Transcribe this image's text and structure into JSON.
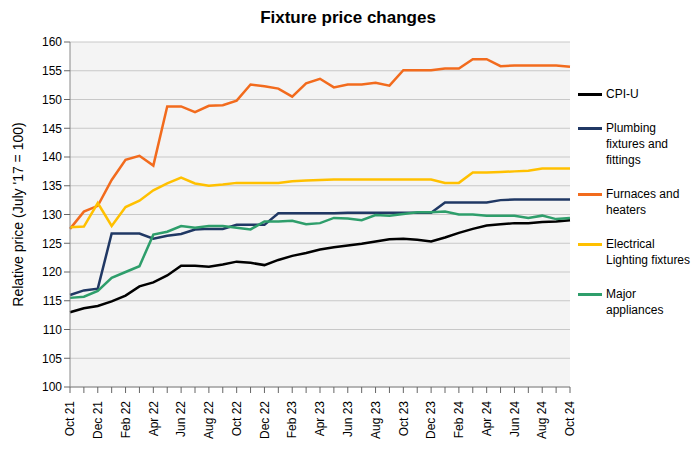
{
  "chart_data": {
    "type": "line",
    "title": "Fixture price changes",
    "y_label": "Relative price (July '17 = 100)",
    "categories": [
      "Oct 21",
      null,
      "Dec 21",
      null,
      "Feb 22",
      null,
      "Apr 22",
      null,
      "Jun 22",
      null,
      "Aug 22",
      null,
      "Oct 22",
      null,
      "Dec 22",
      null,
      "Feb 23",
      null,
      "Apr 23",
      null,
      "Jun 23",
      null,
      "Aug 23",
      null,
      "Oct 23",
      null,
      "Dec 23",
      null,
      "Feb 24",
      null,
      "Apr 24",
      null,
      "Jun 24",
      null,
      "Aug 24",
      null,
      "Oct 24"
    ],
    "series": [
      {
        "name": "CPI-U",
        "color": "#000000",
        "values": [
          113,
          113.7,
          114.1,
          114.9,
          115.9,
          117.5,
          118.2,
          119.4,
          121.1,
          121.1,
          120.9,
          121.3,
          121.8,
          121.6,
          121.2,
          122.1,
          122.8,
          123.3,
          123.9,
          124.3,
          124.6,
          124.9,
          125.3,
          125.7,
          125.8,
          125.6,
          125.3,
          126.0,
          126.8,
          127.5,
          128.1,
          128.3,
          128.5,
          128.5,
          128.7,
          128.8,
          129.0
        ]
      },
      {
        "name": "Plumbing fixtures and fittings",
        "color": "#203864",
        "values": [
          116,
          116.8,
          117.1,
          126.7,
          126.7,
          126.7,
          125.8,
          126.3,
          126.6,
          127.4,
          127.5,
          127.5,
          128.2,
          128.2,
          128.2,
          130.2,
          130.2,
          130.2,
          130.2,
          130.2,
          130.3,
          130.3,
          130.3,
          130.3,
          130.3,
          130.3,
          130.3,
          132.1,
          132.1,
          132.1,
          132.1,
          132.5,
          132.6,
          132.6,
          132.6,
          132.6,
          132.6
        ]
      },
      {
        "name": "Furnaces and heaters",
        "color": "#f26b1d",
        "values": [
          127.5,
          130.5,
          131.5,
          136,
          139.5,
          140.2,
          138.5,
          148.8,
          148.8,
          147.8,
          148.9,
          149,
          149.8,
          152.6,
          152.3,
          151.9,
          150.5,
          152.8,
          153.6,
          152.1,
          152.6,
          152.6,
          152.9,
          152.4,
          155.1,
          155.1,
          155.1,
          155.4,
          155.4,
          157,
          157,
          155.8,
          155.9,
          155.9,
          155.9,
          155.9,
          155.7
        ]
      },
      {
        "name": "Electrical Lighting fixtures",
        "color": "#ffc000",
        "values": [
          127.8,
          127.9,
          132,
          128,
          131.3,
          132.4,
          134.2,
          135.4,
          136.4,
          135.4,
          135,
          135.2,
          135.5,
          135.5,
          135.5,
          135.5,
          135.8,
          135.9,
          136,
          136.1,
          136.1,
          136.1,
          136.1,
          136.1,
          136.1,
          136.1,
          136.1,
          135.5,
          135.5,
          137.3,
          137.3,
          137.4,
          137.5,
          137.6,
          138,
          138,
          138
        ]
      },
      {
        "name": "Major appliances",
        "color": "#2e9e6b",
        "values": [
          115.5,
          115.7,
          116.7,
          119,
          120,
          121,
          126.5,
          127,
          128,
          127.7,
          128,
          128,
          127.7,
          127.4,
          128.8,
          128.8,
          128.9,
          128.3,
          128.5,
          129.4,
          129.3,
          129,
          129.9,
          129.8,
          130.1,
          130.4,
          130.4,
          130.5,
          130,
          130,
          129.8,
          129.8,
          129.8,
          129.4,
          129.8,
          129.2,
          129.4
        ]
      }
    ],
    "ylim": [
      100,
      160
    ],
    "yticks": [
      100,
      105,
      110,
      115,
      120,
      125,
      130,
      135,
      140,
      145,
      150,
      155,
      160
    ],
    "grid": true,
    "legend": "right"
  }
}
